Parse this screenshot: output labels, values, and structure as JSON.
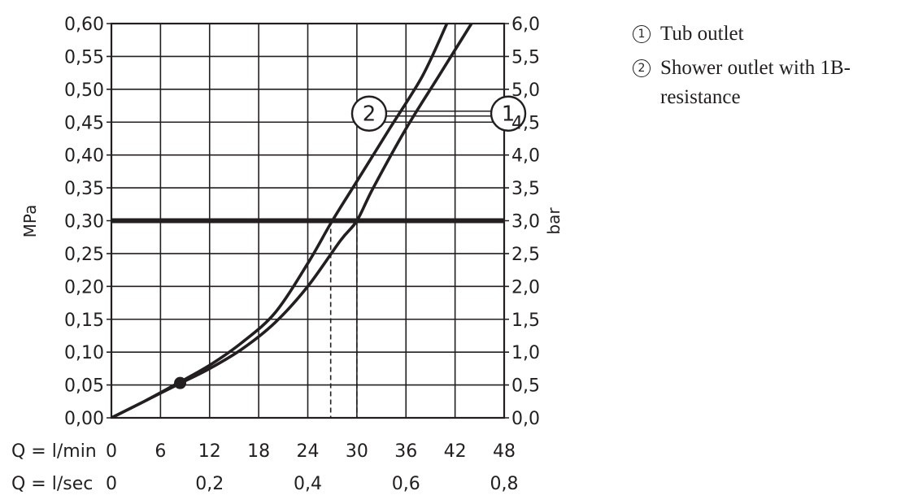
{
  "chart_data": {
    "type": "line",
    "y_left": {
      "label": "MPa",
      "min": 0,
      "max": 0.6,
      "step": 0.05,
      "ticks": [
        "0,00",
        "0,05",
        "0,10",
        "0,15",
        "0,20",
        "0,25",
        "0,30",
        "0,35",
        "0,40",
        "0,45",
        "0,50",
        "0,55",
        "0,60"
      ]
    },
    "y_right": {
      "label": "bar",
      "ticks": [
        "0,0",
        "0,5",
        "1,0",
        "1,5",
        "2,0",
        "2,5",
        "3,0",
        "3,5",
        "4,0",
        "4,5",
        "5,0",
        "5,5",
        "6,0"
      ]
    },
    "x_axis": {
      "min": 0,
      "max": 48,
      "step": 6,
      "row1_label": "Q = l/min",
      "row1_ticks": [
        "0",
        "6",
        "12",
        "18",
        "24",
        "30",
        "36",
        "42",
        "48"
      ],
      "row2_label": "Q = l/sec",
      "row2_ticks": [
        {
          "at": 0,
          "text": "0"
        },
        {
          "at": 12,
          "text": "0,2"
        },
        {
          "at": 24,
          "text": "0,4"
        },
        {
          "at": 36,
          "text": "0,6"
        },
        {
          "at": 48,
          "text": "0,8"
        }
      ]
    },
    "grid": true,
    "reference_line": {
      "y": 0.3
    },
    "drop_lines": [
      {
        "x": 26.8,
        "y": 0.3
      },
      {
        "x": 30.0,
        "y": 0.3
      }
    ],
    "marker_point": {
      "x": 8.4,
      "y": 0.053
    },
    "series": [
      {
        "name": "1",
        "points": [
          [
            0,
            0
          ],
          [
            4,
            0.025
          ],
          [
            8,
            0.05
          ],
          [
            12,
            0.075
          ],
          [
            16,
            0.105
          ],
          [
            20,
            0.145
          ],
          [
            24,
            0.2
          ],
          [
            28,
            0.27
          ],
          [
            30,
            0.3
          ],
          [
            32,
            0.35
          ],
          [
            36,
            0.44
          ],
          [
            40,
            0.52
          ],
          [
            44,
            0.6
          ]
        ]
      },
      {
        "name": "2",
        "points": [
          [
            0,
            0
          ],
          [
            4,
            0.025
          ],
          [
            8,
            0.052
          ],
          [
            12,
            0.08
          ],
          [
            16,
            0.115
          ],
          [
            20,
            0.16
          ],
          [
            24,
            0.235
          ],
          [
            27,
            0.3
          ],
          [
            30,
            0.36
          ],
          [
            34,
            0.44
          ],
          [
            38,
            0.52
          ],
          [
            41,
            0.6
          ]
        ]
      }
    ],
    "series_callouts": [
      {
        "series": "2",
        "number": "2",
        "x": 31.5,
        "y": 0.463
      },
      {
        "series": "1",
        "number": "1",
        "x": 48.5,
        "y": 0.463
      }
    ]
  },
  "legend": [
    {
      "marker": "1",
      "text": "Tub outlet"
    },
    {
      "marker": "2",
      "text": "Shower outlet with 1B-resistance"
    }
  ]
}
